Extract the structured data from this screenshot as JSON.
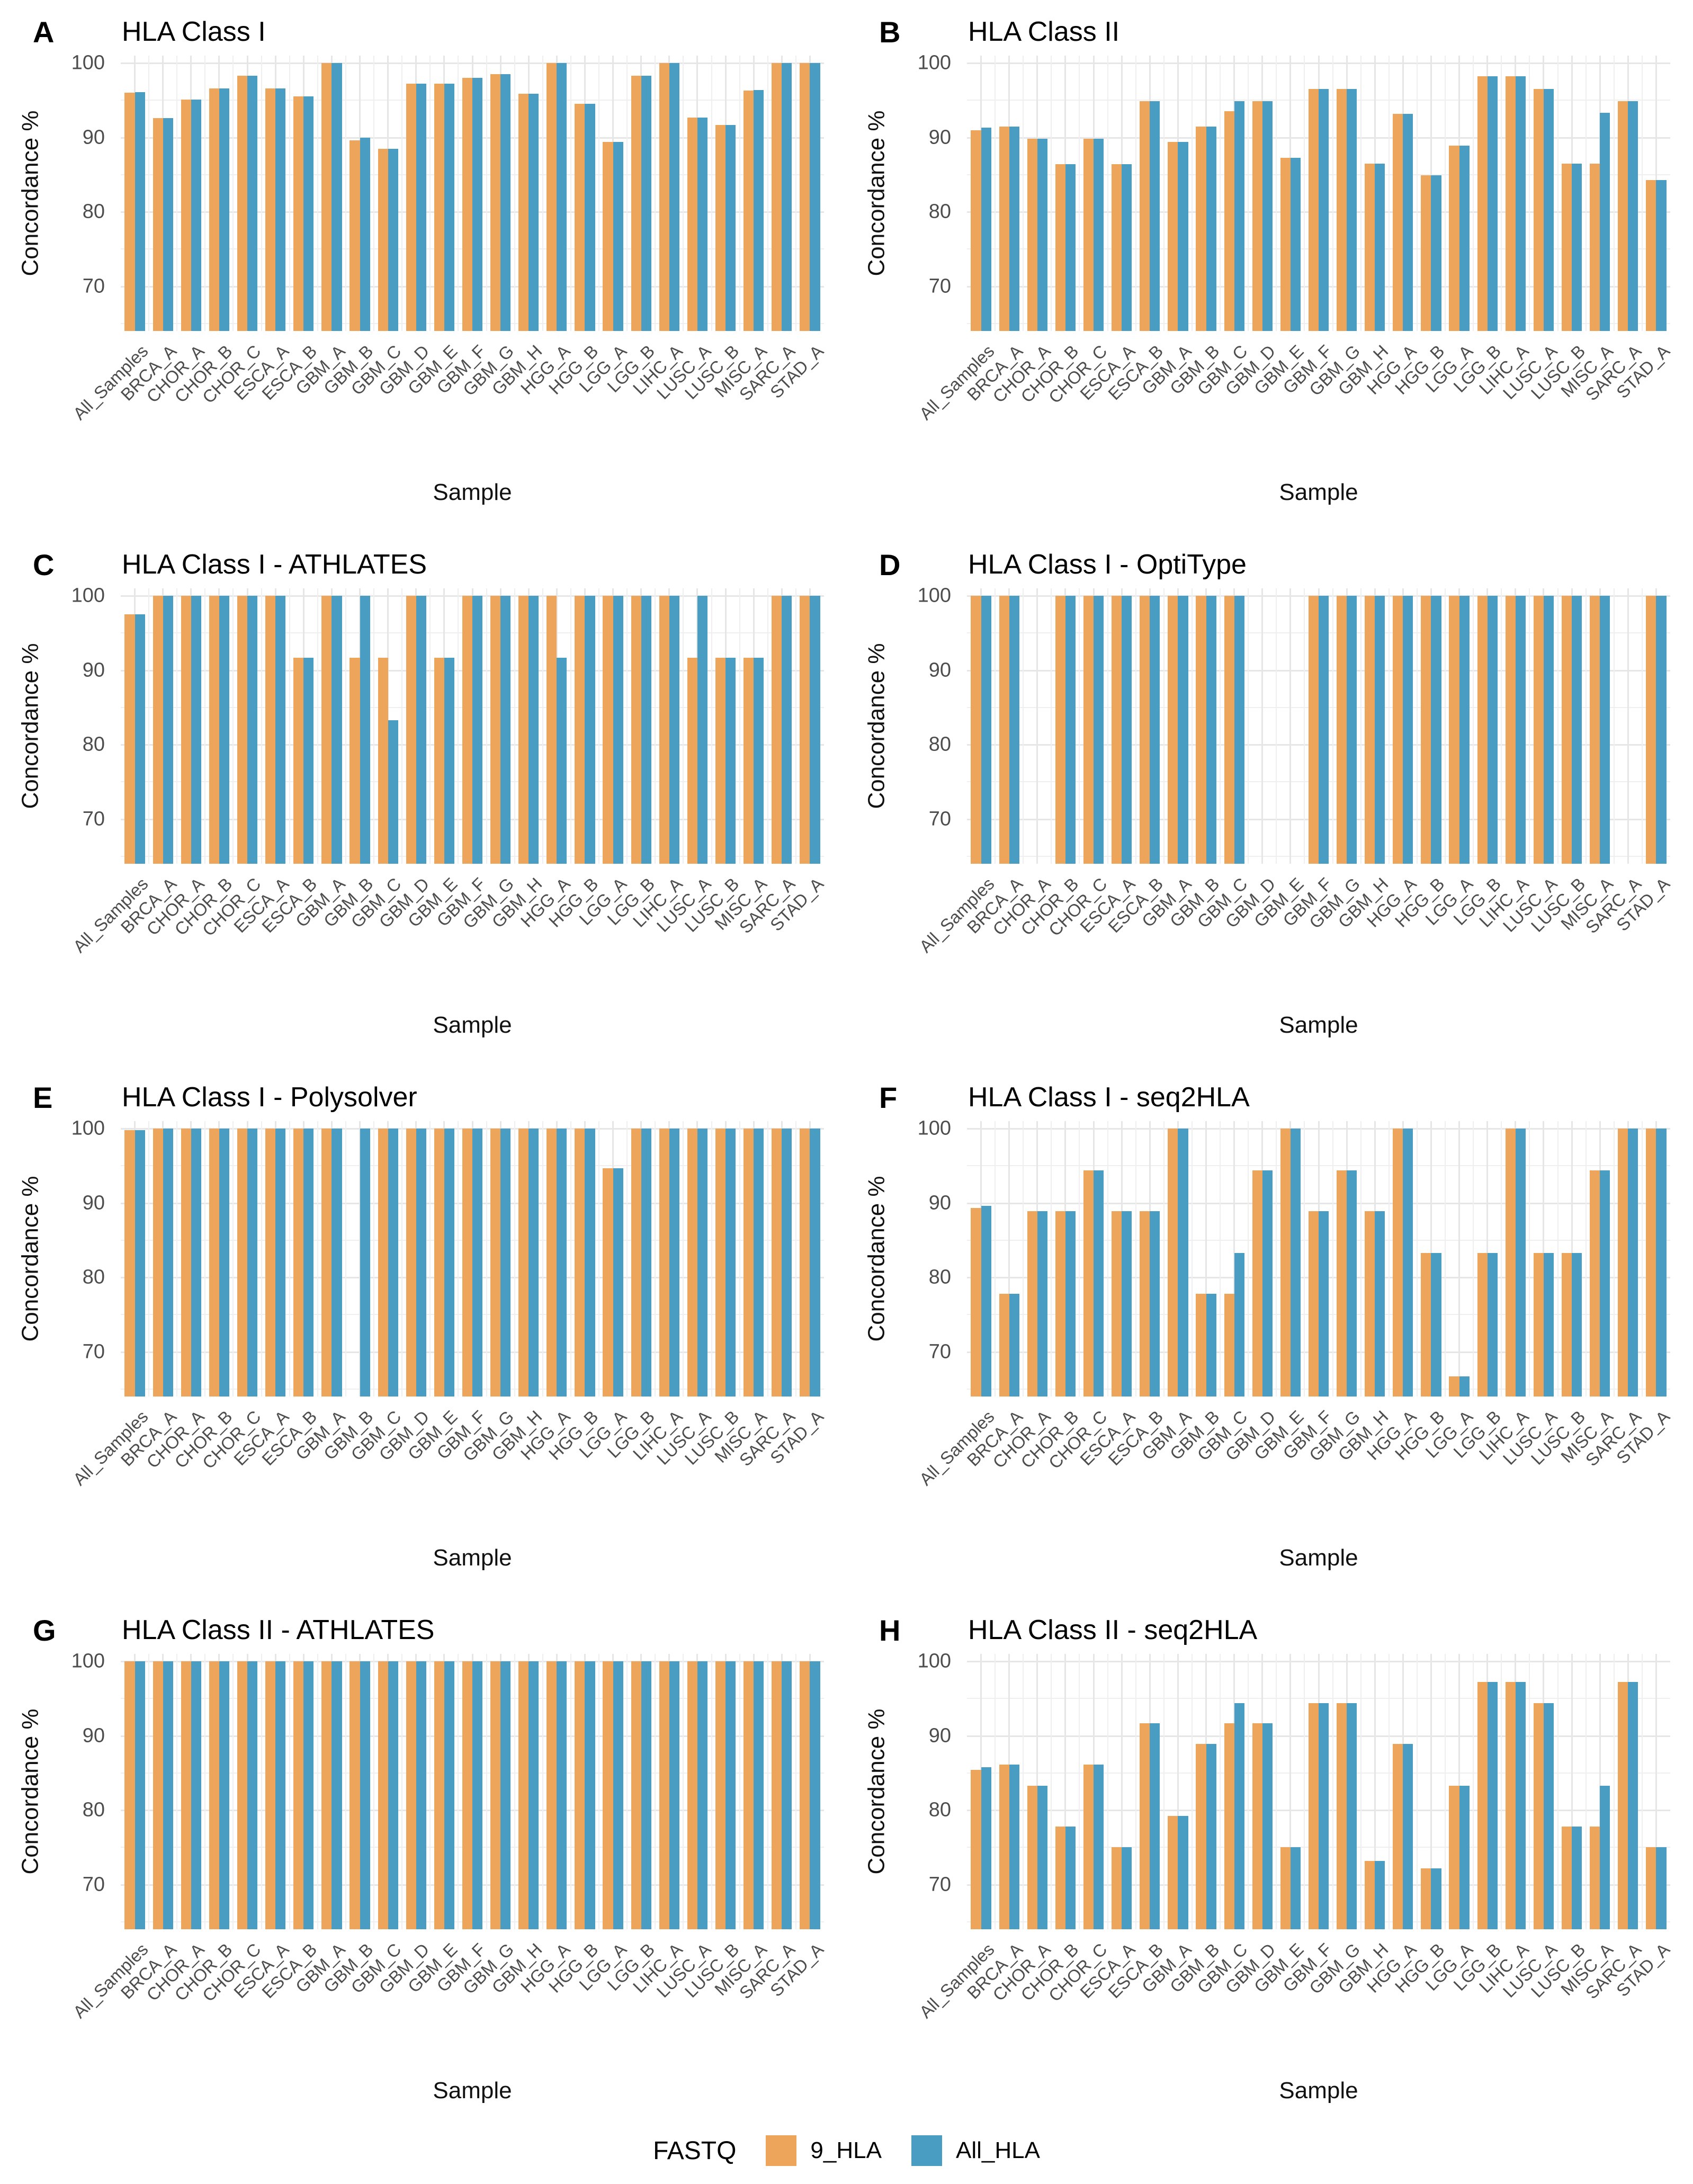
{
  "figure": {
    "x_axis_label": "Sample",
    "y_axis_label": "Concordance %",
    "y_ticks": [
      70,
      80,
      90,
      100
    ],
    "legend": {
      "title": "FASTQ",
      "items": [
        {
          "label": "9_HLA",
          "color": "#EDA45B"
        },
        {
          "label": "All_HLA",
          "color": "#4A9DC2"
        }
      ]
    }
  },
  "chart_data": [
    {
      "type": "bar",
      "panel_tag": "A",
      "title": "HLA Class I",
      "xlabel": "Sample",
      "ylabel": "Concordance %",
      "ylim": [
        64,
        101
      ],
      "yticks": [
        70,
        80,
        90,
        100
      ],
      "grid": true,
      "legend_position": "shared-bottom",
      "categories": [
        "All_Samples",
        "BRCA_A",
        "CHOR_A",
        "CHOR_B",
        "CHOR_C",
        "ESCA_A",
        "ESCA_B",
        "GBM_A",
        "GBM_B",
        "GBM_C",
        "GBM_D",
        "GBM_E",
        "GBM_F",
        "GBM_G",
        "GBM_H",
        "HGG_A",
        "HGG_B",
        "LGG_A",
        "LGG_B",
        "LIHC_A",
        "LUSC_A",
        "LUSC_B",
        "MISC_A",
        "SARC_A",
        "STAD_A"
      ],
      "series": [
        {
          "name": "9_HLA",
          "values": [
            96.0,
            92.6,
            95.1,
            96.6,
            98.3,
            96.6,
            95.5,
            100,
            89.6,
            88.5,
            97.2,
            97.2,
            98.0,
            98.5,
            95.9,
            100,
            94.5,
            89.4,
            98.3,
            100,
            92.7,
            91.7,
            96.3,
            100,
            100
          ]
        },
        {
          "name": "All_HLA",
          "values": [
            96.1,
            92.6,
            95.1,
            96.6,
            98.3,
            96.6,
            95.5,
            100,
            90.0,
            88.5,
            97.2,
            97.2,
            98.0,
            98.5,
            95.9,
            100,
            94.5,
            89.4,
            98.3,
            100,
            92.7,
            91.7,
            96.4,
            100,
            100
          ]
        }
      ]
    },
    {
      "type": "bar",
      "panel_tag": "B",
      "title": "HLA Class II",
      "xlabel": "Sample",
      "ylabel": "Concordance %",
      "ylim": [
        64,
        101
      ],
      "yticks": [
        70,
        80,
        90,
        100
      ],
      "grid": true,
      "legend_position": "shared-bottom",
      "categories": [
        "All_Samples",
        "BRCA_A",
        "CHOR_A",
        "CHOR_B",
        "CHOR_C",
        "ESCA_A",
        "ESCA_B",
        "GBM_A",
        "GBM_B",
        "GBM_C",
        "GBM_D",
        "GBM_E",
        "GBM_F",
        "GBM_G",
        "GBM_H",
        "HGG_A",
        "HGG_B",
        "LGG_A",
        "LGG_B",
        "LIHC_A",
        "LUSC_A",
        "LUSC_B",
        "MISC_A",
        "SARC_A",
        "STAD_A"
      ],
      "series": [
        {
          "name": "9_HLA",
          "values": [
            91.0,
            91.5,
            89.8,
            86.4,
            89.8,
            86.4,
            94.9,
            89.4,
            91.5,
            93.5,
            94.9,
            87.3,
            96.5,
            96.5,
            86.5,
            93.2,
            84.9,
            88.9,
            98.2,
            98.2,
            96.5,
            86.5,
            86.5,
            94.9,
            84.3
          ]
        },
        {
          "name": "All_HLA",
          "values": [
            91.3,
            91.5,
            89.8,
            86.4,
            89.8,
            86.4,
            94.9,
            89.4,
            91.5,
            94.9,
            94.9,
            87.3,
            96.5,
            96.5,
            86.5,
            93.2,
            84.9,
            88.9,
            98.2,
            98.2,
            96.5,
            86.5,
            93.3,
            94.9,
            84.3
          ]
        }
      ]
    },
    {
      "type": "bar",
      "panel_tag": "C",
      "title": "HLA Class I - ATHLATES",
      "xlabel": "Sample",
      "ylabel": "Concordance %",
      "ylim": [
        64,
        101
      ],
      "yticks": [
        70,
        80,
        90,
        100
      ],
      "grid": true,
      "legend_position": "shared-bottom",
      "categories": [
        "All_Samples",
        "BRCA_A",
        "CHOR_A",
        "CHOR_B",
        "CHOR_C",
        "ESCA_A",
        "ESCA_B",
        "GBM_A",
        "GBM_B",
        "GBM_C",
        "GBM_D",
        "GBM_E",
        "GBM_F",
        "GBM_G",
        "GBM_H",
        "HGG_A",
        "HGG_B",
        "LGG_A",
        "LGG_B",
        "LIHC_A",
        "LUSC_A",
        "LUSC_B",
        "MISC_A",
        "SARC_A",
        "STAD_A"
      ],
      "series": [
        {
          "name": "9_HLA",
          "values": [
            97.5,
            100,
            100,
            100,
            100,
            100,
            91.7,
            100,
            91.7,
            91.7,
            100,
            91.7,
            100,
            100,
            100,
            100,
            100,
            100,
            100,
            100,
            91.7,
            91.7,
            91.7,
            100,
            100
          ]
        },
        {
          "name": "All_HLA",
          "values": [
            97.5,
            100,
            100,
            100,
            100,
            100,
            91.7,
            100,
            100,
            83.3,
            100,
            91.7,
            100,
            100,
            100,
            91.7,
            100,
            100,
            100,
            100,
            100,
            91.7,
            91.7,
            100,
            100
          ]
        }
      ]
    },
    {
      "type": "bar",
      "panel_tag": "D",
      "title": "HLA Class I - OptiType",
      "xlabel": "Sample",
      "ylabel": "Concordance %",
      "ylim": [
        64,
        101
      ],
      "yticks": [
        70,
        80,
        90,
        100
      ],
      "grid": true,
      "legend_position": "shared-bottom",
      "categories": [
        "All_Samples",
        "BRCA_A",
        "CHOR_A",
        "CHOR_B",
        "CHOR_C",
        "ESCA_A",
        "ESCA_B",
        "GBM_A",
        "GBM_B",
        "GBM_C",
        "GBM_D",
        "GBM_E",
        "GBM_F",
        "GBM_G",
        "GBM_H",
        "HGG_A",
        "HGG_B",
        "LGG_A",
        "LGG_B",
        "LIHC_A",
        "LUSC_A",
        "LUSC_B",
        "MISC_A",
        "SARC_A",
        "STAD_A"
      ],
      "series": [
        {
          "name": "9_HLA",
          "values": [
            100,
            100,
            null,
            100,
            100,
            100,
            100,
            100,
            100,
            100,
            null,
            null,
            100,
            100,
            100,
            100,
            100,
            100,
            100,
            100,
            100,
            100,
            100,
            null,
            100
          ]
        },
        {
          "name": "All_HLA",
          "values": [
            100,
            100,
            null,
            100,
            100,
            100,
            100,
            100,
            100,
            100,
            null,
            null,
            100,
            100,
            100,
            100,
            100,
            100,
            100,
            100,
            100,
            100,
            100,
            null,
            100
          ]
        }
      ]
    },
    {
      "type": "bar",
      "panel_tag": "E",
      "title": "HLA Class I - Polysolver",
      "xlabel": "Sample",
      "ylabel": "Concordance %",
      "ylim": [
        64,
        101
      ],
      "yticks": [
        70,
        80,
        90,
        100
      ],
      "grid": true,
      "legend_position": "shared-bottom",
      "categories": [
        "All_Samples",
        "BRCA_A",
        "CHOR_A",
        "CHOR_B",
        "CHOR_C",
        "ESCA_A",
        "ESCA_B",
        "GBM_A",
        "GBM_B",
        "GBM_C",
        "GBM_D",
        "GBM_E",
        "GBM_F",
        "GBM_G",
        "GBM_H",
        "HGG_A",
        "HGG_B",
        "LGG_A",
        "LGG_B",
        "LIHC_A",
        "LUSC_A",
        "LUSC_B",
        "MISC_A",
        "SARC_A",
        "STAD_A"
      ],
      "series": [
        {
          "name": "9_HLA",
          "values": [
            99.8,
            100,
            100,
            100,
            100,
            100,
            100,
            100,
            null,
            100,
            100,
            100,
            100,
            100,
            100,
            100,
            100,
            94.7,
            100,
            100,
            100,
            100,
            100,
            100,
            100
          ]
        },
        {
          "name": "All_HLA",
          "values": [
            99.8,
            100,
            100,
            100,
            100,
            100,
            100,
            100,
            100,
            100,
            100,
            100,
            100,
            100,
            100,
            100,
            100,
            94.7,
            100,
            100,
            100,
            100,
            100,
            100,
            100
          ]
        }
      ]
    },
    {
      "type": "bar",
      "panel_tag": "F",
      "title": "HLA Class I - seq2HLA",
      "xlabel": "Sample",
      "ylabel": "Concordance %",
      "ylim": [
        64,
        101
      ],
      "yticks": [
        70,
        80,
        90,
        100
      ],
      "grid": true,
      "legend_position": "shared-bottom",
      "categories": [
        "All_Samples",
        "BRCA_A",
        "CHOR_A",
        "CHOR_B",
        "CHOR_C",
        "ESCA_A",
        "ESCA_B",
        "GBM_A",
        "GBM_B",
        "GBM_C",
        "GBM_D",
        "GBM_E",
        "GBM_F",
        "GBM_G",
        "GBM_H",
        "HGG_A",
        "HGG_B",
        "LGG_A",
        "LGG_B",
        "LIHC_A",
        "LUSC_A",
        "LUSC_B",
        "MISC_A",
        "SARC_A",
        "STAD_A"
      ],
      "series": [
        {
          "name": "9_HLA",
          "values": [
            89.3,
            77.8,
            88.9,
            88.9,
            94.4,
            88.9,
            88.9,
            100,
            77.8,
            77.8,
            94.4,
            100,
            88.9,
            94.4,
            88.9,
            100,
            83.3,
            66.7,
            83.3,
            100,
            83.3,
            83.3,
            94.4,
            100,
            100
          ]
        },
        {
          "name": "All_HLA",
          "values": [
            89.6,
            77.8,
            88.9,
            88.9,
            94.4,
            88.9,
            88.9,
            100,
            77.8,
            83.3,
            94.4,
            100,
            88.9,
            94.4,
            88.9,
            100,
            83.3,
            66.7,
            83.3,
            100,
            83.3,
            83.3,
            94.4,
            100,
            100
          ]
        }
      ]
    },
    {
      "type": "bar",
      "panel_tag": "G",
      "title": "HLA Class II - ATHLATES",
      "xlabel": "Sample",
      "ylabel": "Concordance %",
      "ylim": [
        64,
        101
      ],
      "yticks": [
        70,
        80,
        90,
        100
      ],
      "grid": true,
      "legend_position": "shared-bottom",
      "categories": [
        "All_Samples",
        "BRCA_A",
        "CHOR_A",
        "CHOR_B",
        "CHOR_C",
        "ESCA_A",
        "ESCA_B",
        "GBM_A",
        "GBM_B",
        "GBM_C",
        "GBM_D",
        "GBM_E",
        "GBM_F",
        "GBM_G",
        "GBM_H",
        "HGG_A",
        "HGG_B",
        "LGG_A",
        "LGG_B",
        "LIHC_A",
        "LUSC_A",
        "LUSC_B",
        "MISC_A",
        "SARC_A",
        "STAD_A"
      ],
      "series": [
        {
          "name": "9_HLA",
          "values": [
            100,
            100,
            100,
            100,
            100,
            100,
            100,
            100,
            100,
            100,
            100,
            100,
            100,
            100,
            100,
            100,
            100,
            100,
            100,
            100,
            100,
            100,
            100,
            100,
            100
          ]
        },
        {
          "name": "All_HLA",
          "values": [
            100,
            100,
            100,
            100,
            100,
            100,
            100,
            100,
            100,
            100,
            100,
            100,
            100,
            100,
            100,
            100,
            100,
            100,
            100,
            100,
            100,
            100,
            100,
            100,
            100
          ]
        }
      ]
    },
    {
      "type": "bar",
      "panel_tag": "H",
      "title": "HLA Class II - seq2HLA",
      "xlabel": "Sample",
      "ylabel": "Concordance %",
      "ylim": [
        64,
        101
      ],
      "yticks": [
        70,
        80,
        90,
        100
      ],
      "grid": true,
      "legend_position": "shared-bottom",
      "categories": [
        "All_Samples",
        "BRCA_A",
        "CHOR_A",
        "CHOR_B",
        "CHOR_C",
        "ESCA_A",
        "ESCA_B",
        "GBM_A",
        "GBM_B",
        "GBM_C",
        "GBM_D",
        "GBM_E",
        "GBM_F",
        "GBM_G",
        "GBM_H",
        "HGG_A",
        "HGG_B",
        "LGG_A",
        "LGG_B",
        "LIHC_A",
        "LUSC_A",
        "LUSC_B",
        "MISC_A",
        "SARC_A",
        "STAD_A"
      ],
      "series": [
        {
          "name": "9_HLA",
          "values": [
            85.4,
            86.1,
            83.3,
            77.8,
            86.1,
            75.0,
            91.7,
            79.2,
            88.9,
            91.7,
            91.7,
            75.0,
            94.4,
            94.4,
            73.2,
            88.9,
            72.2,
            83.3,
            97.2,
            97.2,
            94.4,
            77.8,
            77.8,
            97.2,
            75.0
          ]
        },
        {
          "name": "All_HLA",
          "values": [
            85.8,
            86.1,
            83.3,
            77.8,
            86.1,
            75.0,
            91.7,
            79.2,
            88.9,
            94.4,
            91.7,
            75.0,
            94.4,
            94.4,
            73.2,
            88.9,
            72.2,
            83.3,
            97.2,
            97.2,
            94.4,
            77.8,
            83.3,
            97.2,
            75.0
          ]
        }
      ]
    }
  ]
}
